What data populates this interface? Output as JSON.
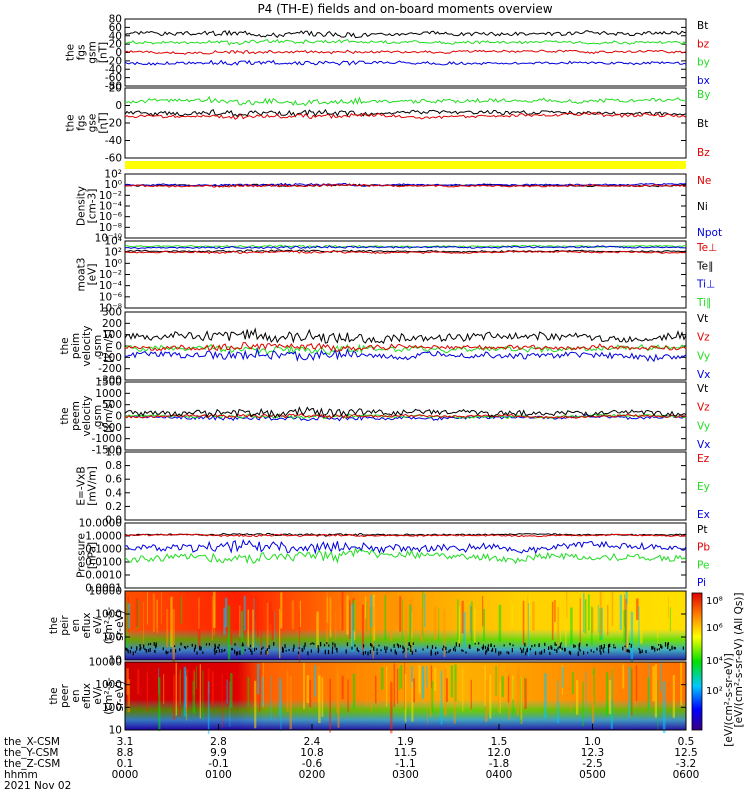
{
  "title": "P4 (TH-E) fields and on-board moments overview",
  "colors": {
    "black": "#000000",
    "red": "#e00000",
    "green": "#22dd22",
    "blue": "#0000e0",
    "yellow": "#ffff00",
    "axis": "#000000"
  },
  "panels": [
    {
      "id": "fgs-gsm",
      "ylabel": [
        "the",
        "fgs",
        "gsm",
        "[nT]"
      ],
      "ticks": [
        "80",
        "60",
        "40",
        "20",
        "0",
        "-20",
        "-40",
        "-60",
        "-80"
      ],
      "ylim": [
        -80,
        80
      ],
      "legend": [
        {
          "label": "Bt",
          "color": "black"
        },
        {
          "label": "bz",
          "color": "red"
        },
        {
          "label": "by",
          "color": "green"
        },
        {
          "label": "bx",
          "color": "blue"
        }
      ],
      "series": [
        {
          "color": "black",
          "base": 45,
          "amp": 8
        },
        {
          "color": "green",
          "base": 25,
          "amp": 6
        },
        {
          "color": "red",
          "base": 2,
          "amp": 5
        },
        {
          "color": "blue",
          "base": -25,
          "amp": 6
        }
      ]
    },
    {
      "id": "fgs-gse",
      "ylabel": [
        "the",
        "fgs",
        "gse",
        "[nT]"
      ],
      "ticks": [
        "20",
        "0",
        "-20",
        "-40",
        "-60"
      ],
      "ylim": [
        -70,
        30
      ],
      "legend": [
        {
          "label": "By",
          "color": "green"
        },
        {
          "label": "Bt",
          "color": "black"
        },
        {
          "label": "Bz",
          "color": "red"
        }
      ],
      "series": [
        {
          "color": "green",
          "base": 12,
          "amp": 5
        },
        {
          "color": "black",
          "base": -6,
          "amp": 5
        },
        {
          "color": "red",
          "base": -10,
          "amp": 4
        }
      ]
    },
    {
      "id": "density",
      "ylabel": [
        "Density",
        "[cm-3]"
      ],
      "ticks": [
        "10²",
        "10⁰",
        "10⁻²",
        "10⁻⁴",
        "10⁻⁶",
        "10⁻⁸",
        "10⁻¹⁰"
      ],
      "ylim": [
        -10,
        2.5
      ],
      "legend": [
        {
          "label": "Ne",
          "color": "red"
        },
        {
          "label": "Ni",
          "color": "black"
        },
        {
          "label": "Npot",
          "color": "blue"
        }
      ],
      "series": [
        {
          "color": "black",
          "base": 0.3,
          "amp": 0.25
        },
        {
          "color": "blue",
          "base": 0.4,
          "amp": 0.25
        },
        {
          "color": "red",
          "base": 0.2,
          "amp": 0.3
        }
      ]
    },
    {
      "id": "temperature",
      "ylabel": [
        "moat3",
        "[eV]"
      ],
      "ticks": [
        "10⁴",
        "10²",
        "10⁰",
        "10⁻²",
        "10⁻⁴",
        "10⁻⁶",
        "10⁻⁸"
      ],
      "ylim": [
        -8,
        4.5
      ],
      "legend": [
        {
          "label": "Te⊥",
          "color": "red"
        },
        {
          "label": "Te∥",
          "color": "black"
        },
        {
          "label": "Ti⊥",
          "color": "blue"
        },
        {
          "label": "Ti∥",
          "color": "green"
        }
      ],
      "series": [
        {
          "color": "green",
          "base": 3.5,
          "amp": 0.25
        },
        {
          "color": "blue",
          "base": 3.3,
          "amp": 0.25
        },
        {
          "color": "black",
          "base": 2.6,
          "amp": 0.25
        },
        {
          "color": "red",
          "base": 2.4,
          "amp": 0.25
        }
      ]
    },
    {
      "id": "peim",
      "ylabel": [
        "the",
        "peim",
        "velocity",
        "gsm",
        "[km/s]"
      ],
      "ticks": [
        "300",
        "200",
        "100",
        "0",
        "-100",
        "-200",
        "-300"
      ],
      "ylim": [
        -300,
        300
      ],
      "legend": [
        {
          "label": "Vt",
          "color": "black"
        },
        {
          "label": "Vz",
          "color": "red"
        },
        {
          "label": "Vy",
          "color": "green"
        },
        {
          "label": "Vx",
          "color": "blue"
        }
      ],
      "series": [
        {
          "color": "green",
          "base": -20,
          "amp": 40
        },
        {
          "color": "blue",
          "base": -80,
          "amp": 50
        },
        {
          "color": "red",
          "base": -10,
          "amp": 35
        },
        {
          "color": "black",
          "base": 80,
          "amp": 60
        }
      ]
    },
    {
      "id": "peem",
      "ylabel": [
        "the",
        "peem",
        "velocity",
        "gsm",
        "[km/s]"
      ],
      "ticks": [
        "1500",
        "1000",
        "500",
        "0",
        "-500",
        "-1000",
        "-1500"
      ],
      "ylim": [
        -1500,
        1500
      ],
      "legend": [
        {
          "label": "Vt",
          "color": "black"
        },
        {
          "label": "Vz",
          "color": "red"
        },
        {
          "label": "Vy",
          "color": "green"
        },
        {
          "label": "Vx",
          "color": "blue"
        }
      ],
      "series": [
        {
          "color": "blue",
          "base": -60,
          "amp": 120
        },
        {
          "color": "green",
          "base": -20,
          "amp": 100
        },
        {
          "color": "red",
          "base": 0,
          "amp": 100
        },
        {
          "color": "black",
          "base": 150,
          "amp": 220
        }
      ]
    },
    {
      "id": "efield",
      "ylabel": [
        "E=-VxB",
        "[mV/m]"
      ],
      "ticks": [
        "1.0",
        "0.8",
        "0.6",
        "0.4",
        "0.2",
        "0.0"
      ],
      "ylim": [
        0,
        1
      ],
      "legend": [
        {
          "label": "Ez",
          "color": "red"
        },
        {
          "label": "Ey",
          "color": "green"
        },
        {
          "label": "Ex",
          "color": "blue"
        }
      ],
      "series": []
    },
    {
      "id": "pressure",
      "ylabel": [
        "Pressure",
        "[nPa]"
      ],
      "ticks": [
        "10.0000",
        "1.0000",
        "0.1000",
        "0.0100",
        "0.0010",
        "0.0001"
      ],
      "ylim": [
        -4,
        1
      ],
      "legend": [
        {
          "label": "Pt",
          "color": "black"
        },
        {
          "label": "Pb",
          "color": "red"
        },
        {
          "label": "Pe",
          "color": "green"
        },
        {
          "label": "Pi",
          "color": "blue"
        }
      ],
      "series": [
        {
          "color": "black",
          "base": 0.1,
          "amp": 0.1
        },
        {
          "color": "red",
          "base": 0.05,
          "amp": 0.1
        },
        {
          "color": "blue",
          "base": -0.9,
          "amp": 0.5
        },
        {
          "color": "green",
          "base": -1.6,
          "amp": 0.5
        }
      ]
    },
    {
      "id": "peir-spec",
      "ylabel": [
        "the",
        "peir",
        "en",
        "eflux",
        "eV/",
        "(cm²-s-",
        "sr-eV)"
      ],
      "ticks": [
        "10000",
        "1000",
        "100",
        "10"
      ],
      "type": "spectrogram"
    },
    {
      "id": "peer-spec",
      "ylabel": [
        "the",
        "peer",
        "en",
        "eflux",
        "eV/",
        "(cm²-s-",
        "sr-eV)"
      ],
      "ticks": [
        "10000",
        "1000",
        "100",
        "10"
      ],
      "type": "spectrogram"
    }
  ],
  "colorbar": {
    "ticks": [
      "10⁸",
      "10⁶",
      "10⁴",
      "10²"
    ],
    "label": "[eV/(cm²-s-sr-eV)]",
    "label2": "[eV/(cm²-s-sr-eV) (All Qs)]"
  },
  "xaxis": {
    "rows": [
      {
        "label": "the_X-CSM",
        "values": [
          "3.1",
          "2.8",
          "2.4",
          "1.9",
          "1.5",
          "1.0",
          "0.5"
        ]
      },
      {
        "label": "the_Y-CSM",
        "values": [
          "8.8",
          "9.9",
          "10.8",
          "11.5",
          "12.0",
          "12.3",
          "12.5"
        ]
      },
      {
        "label": "the_Z-CSM",
        "values": [
          "0.1",
          "-0.1",
          "-0.6",
          "-1.1",
          "-1.8",
          "-2.5",
          "-3.2"
        ]
      },
      {
        "label": "hhmm",
        "values": [
          "0000",
          "0100",
          "0200",
          "0300",
          "0400",
          "0500",
          "0600"
        ]
      }
    ],
    "date": "2021 Nov 02"
  },
  "chart_data": {
    "type": "line",
    "title": "P4 (TH-E) fields and on-board moments overview",
    "x": [
      "0000",
      "0100",
      "0200",
      "0300",
      "0400",
      "0500",
      "0600"
    ],
    "xlabel": "hhmm",
    "date": "2021 Nov 02",
    "panels": [
      {
        "ylabel": "the fgs gsm [nT]",
        "ylim": [
          -80,
          80
        ],
        "series": [
          {
            "name": "Bt",
            "values": [
              45,
              50,
              50,
              45,
              45,
              42,
              42
            ]
          },
          {
            "name": "bz",
            "values": [
              5,
              5,
              5,
              3,
              0,
              -5,
              5
            ]
          },
          {
            "name": "by",
            "values": [
              20,
              25,
              30,
              30,
              28,
              25,
              25
            ]
          },
          {
            "name": "bx",
            "values": [
              -25,
              -20,
              -30,
              -30,
              -25,
              -30,
              -20
            ]
          }
        ]
      },
      {
        "ylabel": "the fgs gse [nT]",
        "ylim": [
          -70,
          30
        ],
        "series": [
          {
            "name": "By",
            "values": [
              5,
              10,
              18,
              18,
              15,
              15,
              12
            ]
          },
          {
            "name": "Bt",
            "values": [
              -5,
              -8,
              -5,
              -5,
              -5,
              -5,
              -5
            ]
          },
          {
            "name": "Bz",
            "values": [
              -10,
              -12,
              -10,
              -10,
              -10,
              -12,
              -10
            ]
          }
        ]
      },
      {
        "ylabel": "Density [cm-3]",
        "series": [
          {
            "name": "Ne",
            "values": [
              1,
              3,
              2,
              2,
              1.5,
              1.5,
              2
            ]
          },
          {
            "name": "Ni",
            "values": [
              1,
              3,
              2,
              2,
              1.5,
              1.5,
              2
            ]
          },
          {
            "name": "Npot",
            "values": [
              1.5,
              3,
              2,
              2,
              1.5,
              1.5,
              2
            ]
          }
        ]
      },
      {
        "ylabel": "moat3 [eV]",
        "series": [
          {
            "name": "Te⊥",
            "values": [
              300,
              300,
              300,
              300,
              300,
              300,
              300
            ]
          },
          {
            "name": "Te∥",
            "values": [
              400,
              400,
              400,
              400,
              400,
              400,
              400
            ]
          },
          {
            "name": "Ti⊥",
            "values": [
              2000,
              2000,
              2000,
              2000,
              2000,
              2000,
              2000
            ]
          },
          {
            "name": "Ti∥",
            "values": [
              3000,
              3000,
              3000,
              3000,
              3000,
              3000,
              3000
            ]
          }
        ]
      },
      {
        "ylabel": "the peim velocity gsm [km/s]",
        "ylim": [
          -300,
          300
        ],
        "series": [
          {
            "name": "Vt",
            "values": [
              50,
              100,
              120,
              100,
              80,
              80,
              100
            ]
          },
          {
            "name": "Vz",
            "values": [
              0,
              -20,
              -10,
              -10,
              -10,
              -20,
              0
            ]
          },
          {
            "name": "Vy",
            "values": [
              -20,
              -20,
              -20,
              -20,
              -20,
              -30,
              -20
            ]
          },
          {
            "name": "Vx",
            "values": [
              -50,
              -100,
              -120,
              -80,
              -80,
              -80,
              -60
            ]
          }
        ]
      },
      {
        "ylabel": "the peem velocity gsm [km/s]",
        "ylim": [
          -1500,
          1500
        ],
        "series": [
          {
            "name": "Vt",
            "values": [
              100,
              300,
              300,
              250,
              200,
              200,
              250
            ]
          },
          {
            "name": "Vz",
            "values": [
              0,
              0,
              0,
              0,
              0,
              0,
              0
            ]
          },
          {
            "name": "Vy",
            "values": [
              0,
              -20,
              -20,
              -20,
              -20,
              -20,
              0
            ]
          },
          {
            "name": "Vx",
            "values": [
              -50,
              -100,
              -100,
              -80,
              -80,
              -80,
              -60
            ]
          }
        ]
      },
      {
        "ylabel": "E=-VxB [mV/m]",
        "ylim": [
          0,
          1
        ],
        "series": [
          {
            "name": "Ez",
            "values": []
          },
          {
            "name": "Ey",
            "values": []
          },
          {
            "name": "Ex",
            "values": []
          }
        ]
      },
      {
        "ylabel": "Pressure [nPa]",
        "series": [
          {
            "name": "Pt",
            "values": [
              1.2,
              1.3,
              1.2,
              1.2,
              1.2,
              1.2,
              1.2
            ]
          },
          {
            "name": "Pb",
            "values": [
              1,
              1.2,
              1.1,
              1.1,
              1,
              1,
              1.1
            ]
          },
          {
            "name": "Pe",
            "values": [
              0.05,
              0.04,
              0.02,
              0.02,
              0.01,
              0.005,
              0.02
            ]
          },
          {
            "name": "Pi",
            "values": [
              0.3,
              0.3,
              0.15,
              0.1,
              0.05,
              0.03,
              0.1
            ]
          }
        ]
      }
    ]
  }
}
